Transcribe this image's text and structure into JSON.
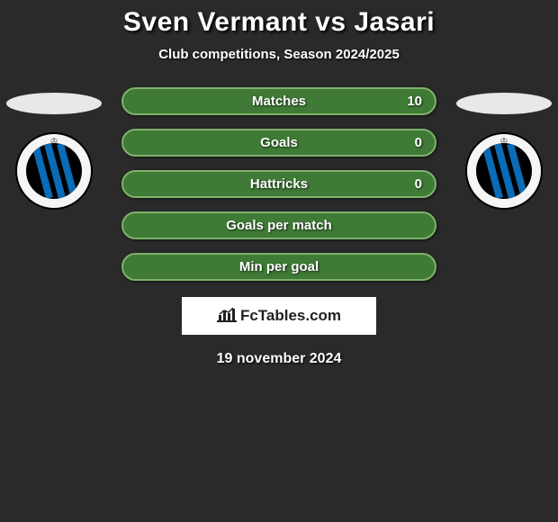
{
  "title": "Sven Vermant vs Jasari",
  "subtitle": "Club competitions, Season 2024/2025",
  "date": "19 november 2024",
  "logo_text": "FcTables.com",
  "player_left": {
    "avatar_color": "#e8e8e8",
    "club_stripe_color": "#0a6bb6"
  },
  "player_right": {
    "avatar_color": "#e8e8e8",
    "club_stripe_color": "#0a6bb6"
  },
  "stats": [
    {
      "label": "Matches",
      "value": "10",
      "bg": "#3f7a36",
      "border": "#7fb26b"
    },
    {
      "label": "Goals",
      "value": "0",
      "bg": "#3f7a36",
      "border": "#7fb26b"
    },
    {
      "label": "Hattricks",
      "value": "0",
      "bg": "#3f7a36",
      "border": "#7fb26b"
    },
    {
      "label": "Goals per match",
      "value": "",
      "bg": "#3f7a36",
      "border": "#7fb26b"
    },
    {
      "label": "Min per goal",
      "value": "",
      "bg": "#3f7a36",
      "border": "#7fb26b"
    }
  ],
  "colors": {
    "background": "#2a2a2a",
    "text": "#ffffff",
    "logo_bg": "#ffffff"
  }
}
